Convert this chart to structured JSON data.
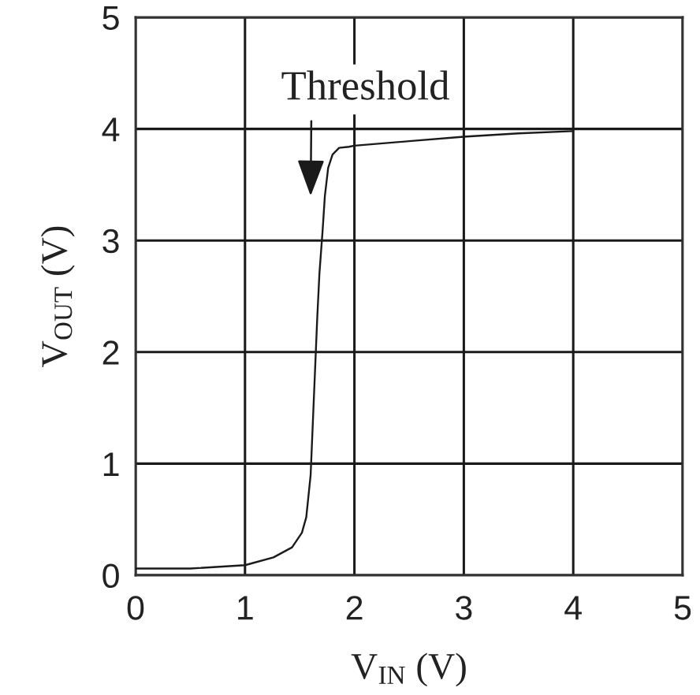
{
  "chart_data": {
    "type": "line",
    "xlabel": "V$_{IN}$ (V)",
    "ylabel": "V$_{OUT}$ (V)",
    "x": [
      0,
      0.5,
      1.0,
      1.26,
      1.43,
      1.52,
      1.56,
      1.6,
      1.63,
      1.66,
      1.68,
      1.71,
      1.73,
      1.76,
      1.8,
      1.86,
      1.95,
      2.0,
      2.5,
      3.0,
      3.5,
      4.0
    ],
    "values": [
      0.06,
      0.06,
      0.09,
      0.16,
      0.25,
      0.38,
      0.52,
      0.9,
      1.6,
      2.3,
      2.7,
      3.1,
      3.4,
      3.65,
      3.77,
      3.83,
      3.84,
      3.85,
      3.89,
      3.93,
      3.96,
      3.98
    ],
    "color": "#1a1a1a",
    "xlim": [
      0,
      5
    ],
    "ylim": [
      0,
      5
    ],
    "xticks": [
      0,
      1,
      2,
      3,
      4,
      5
    ],
    "yticks": [
      0,
      1,
      2,
      3,
      4,
      5
    ],
    "grid": true,
    "annotations": [
      "Threshold"
    ]
  }
}
